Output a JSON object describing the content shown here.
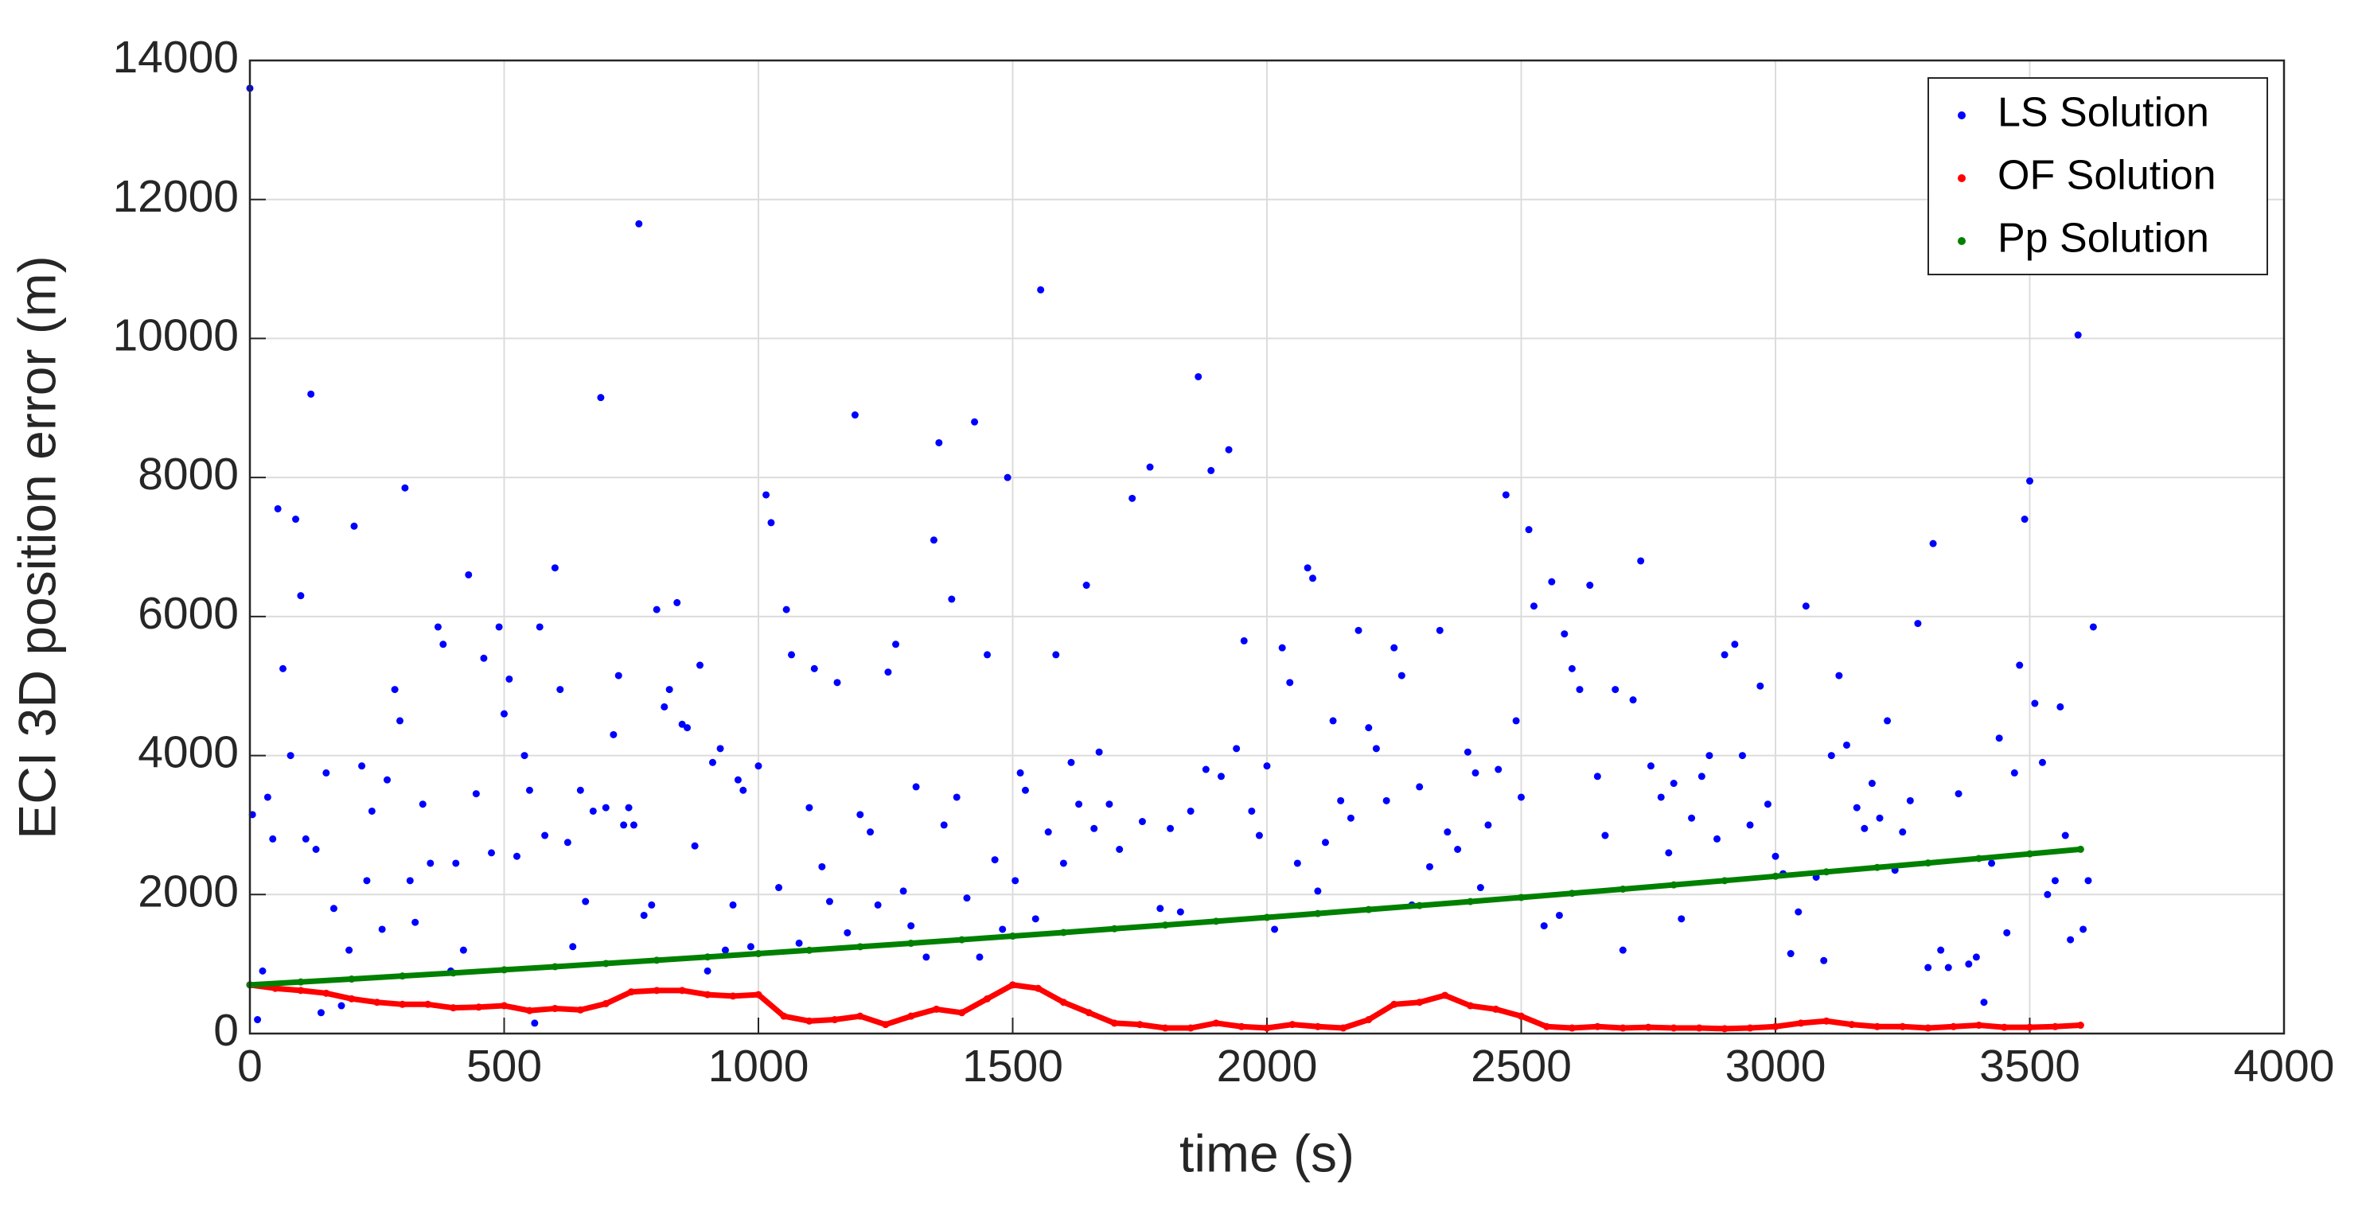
{
  "chart_data": {
    "type": "scatter",
    "xlabel": "time (s)",
    "ylabel": "ECI 3D position error (m)",
    "xlim": [
      0,
      4000
    ],
    "xticks": [
      0,
      500,
      1000,
      1500,
      2000,
      2500,
      3000,
      3500,
      4000
    ],
    "ylim": [
      0,
      14000
    ],
    "yticks": [
      0,
      2000,
      4000,
      6000,
      8000,
      10000,
      12000,
      14000
    ],
    "grid": true,
    "legend": "upper right",
    "series": [
      {
        "name": "LS Solution",
        "color": "#0000ff",
        "line": false,
        "x": [
          0,
          5,
          15,
          25,
          35,
          45,
          55,
          65,
          80,
          90,
          100,
          110,
          120,
          130,
          140,
          150,
          165,
          180,
          195,
          205,
          220,
          230,
          240,
          260,
          270,
          285,
          295,
          305,
          315,
          325,
          340,
          355,
          370,
          380,
          395,
          405,
          420,
          430,
          445,
          460,
          475,
          490,
          500,
          510,
          525,
          540,
          550,
          560,
          570,
          580,
          600,
          610,
          625,
          635,
          650,
          660,
          675,
          690,
          700,
          715,
          725,
          735,
          745,
          755,
          765,
          775,
          790,
          800,
          815,
          825,
          840,
          850,
          860,
          875,
          885,
          900,
          910,
          925,
          935,
          950,
          960,
          970,
          985,
          1000,
          1015,
          1025,
          1040,
          1055,
          1065,
          1080,
          1100,
          1110,
          1125,
          1140,
          1155,
          1175,
          1190,
          1200,
          1220,
          1235,
          1255,
          1270,
          1285,
          1300,
          1310,
          1330,
          1345,
          1355,
          1365,
          1380,
          1390,
          1410,
          1425,
          1435,
          1450,
          1465,
          1480,
          1490,
          1505,
          1515,
          1525,
          1545,
          1555,
          1570,
          1585,
          1600,
          1615,
          1630,
          1645,
          1660,
          1670,
          1690,
          1710,
          1735,
          1755,
          1770,
          1790,
          1810,
          1830,
          1850,
          1865,
          1880,
          1890,
          1910,
          1925,
          1940,
          1955,
          1970,
          1985,
          2000,
          2015,
          2030,
          2045,
          2060,
          2080,
          2090,
          2100,
          2115,
          2130,
          2145,
          2165,
          2180,
          2200,
          2215,
          2235,
          2250,
          2265,
          2285,
          2300,
          2320,
          2340,
          2355,
          2375,
          2395,
          2410,
          2420,
          2435,
          2455,
          2470,
          2490,
          2500,
          2515,
          2525,
          2545,
          2560,
          2575,
          2585,
          2600,
          2615,
          2635,
          2650,
          2665,
          2685,
          2700,
          2720,
          2735,
          2755,
          2775,
          2790,
          2800,
          2815,
          2835,
          2855,
          2870,
          2885,
          2900,
          2920,
          2935,
          2950,
          2970,
          2985,
          3000,
          3015,
          3030,
          3045,
          3060,
          3080,
          3095,
          3110,
          3125,
          3140,
          3160,
          3175,
          3190,
          3205,
          3220,
          3235,
          3250,
          3265,
          3280,
          3300,
          3310,
          3325,
          3340,
          3360,
          3380,
          3395,
          3410,
          3425,
          3440,
          3455,
          3470,
          3480,
          3490,
          3500,
          3510,
          3525,
          3535,
          3550,
          3560,
          3570,
          3580,
          3595,
          3605,
          3615,
          3625
        ],
        "values": [
          13600,
          3150,
          200,
          900,
          3400,
          2800,
          7550,
          5250,
          4000,
          7400,
          6300,
          2800,
          9200,
          2650,
          300,
          3750,
          1800,
          400,
          1200,
          7300,
          3850,
          2200,
          3200,
          1500,
          3650,
          4950,
          4500,
          7850,
          2200,
          1600,
          3300,
          2450,
          5850,
          5600,
          900,
          2450,
          1200,
          6600,
          3450,
          5400,
          2600,
          5850,
          4600,
          5100,
          2550,
          4000,
          3500,
          150,
          5850,
          2850,
          6700,
          4950,
          2750,
          1250,
          3500,
          1900,
          3200,
          9150,
          3250,
          4300,
          5150,
          3000,
          3250,
          3000,
          11650,
          1700,
          1850,
          6100,
          4700,
          4950,
          6200,
          4450,
          4400,
          2700,
          5300,
          900,
          3900,
          4100,
          1200,
          1850,
          3650,
          3500,
          1250,
          3850,
          7750,
          7350,
          2100,
          6100,
          5450,
          1300,
          3250,
          5250,
          2400,
          1900,
          5050,
          1450,
          8900,
          3150,
          2900,
          1850,
          5200,
          5600,
          2050,
          1550,
          3550,
          1100,
          7100,
          8500,
          3000,
          6250,
          3400,
          1950,
          8800,
          1100,
          5450,
          2500,
          1500,
          8000,
          2200,
          3750,
          3500,
          1650,
          10700,
          2900,
          5450,
          2450,
          3900,
          3300,
          6450,
          2950,
          4050,
          3300,
          2650,
          7700,
          3050,
          8150,
          1800,
          2950,
          1750,
          3200,
          9450,
          3800,
          8100,
          3700,
          8400,
          4100,
          5650,
          3200,
          2850,
          3850,
          1500,
          5550,
          5050,
          2450,
          6700,
          6550,
          2050,
          2750,
          4500,
          3350,
          3100,
          5800,
          4400,
          4100,
          3350,
          5550,
          5150,
          1850,
          3550,
          2400,
          5800,
          2900,
          2650,
          4050,
          3750,
          2100,
          3000,
          3800,
          7750,
          4500,
          3400,
          7250,
          6150,
          1550,
          6500,
          1700,
          5750,
          5250,
          4950,
          6450,
          3700,
          2850,
          4950,
          1200,
          4800,
          6800,
          3850,
          3400,
          2600,
          3600,
          1650,
          3100,
          3700,
          4000,
          2800,
          5450,
          5600,
          4000,
          3000,
          5000,
          3300,
          2550,
          2300,
          1150,
          1750,
          6150,
          2250,
          1050,
          4000,
          5150,
          4150,
          3250,
          2950,
          3600,
          3100,
          4500,
          2350,
          2900,
          3350,
          5900,
          950,
          7050,
          1200,
          950,
          3450,
          1000,
          1100,
          450,
          2450,
          4250,
          1450,
          3750,
          5300,
          7400,
          7950,
          4750,
          3900,
          2000,
          2200,
          4700,
          2850,
          1350,
          10050,
          1500,
          2200,
          5850
        ]
      },
      {
        "name": "OF Solution",
        "color": "#ff0000",
        "line": true,
        "x": [
          0,
          50,
          100,
          150,
          200,
          250,
          300,
          350,
          400,
          450,
          500,
          550,
          600,
          650,
          700,
          750,
          800,
          850,
          900,
          950,
          1000,
          1050,
          1100,
          1150,
          1200,
          1250,
          1300,
          1350,
          1400,
          1450,
          1500,
          1550,
          1600,
          1650,
          1700,
          1750,
          1800,
          1850,
          1900,
          1950,
          2000,
          2050,
          2100,
          2150,
          2200,
          2250,
          2300,
          2350,
          2400,
          2450,
          2500,
          2550,
          2600,
          2650,
          2700,
          2750,
          2800,
          2850,
          2900,
          2950,
          3000,
          3050,
          3100,
          3150,
          3200,
          3250,
          3300,
          3350,
          3400,
          3450,
          3500,
          3550,
          3600
        ],
        "values": [
          700,
          650,
          620,
          580,
          500,
          450,
          420,
          420,
          370,
          380,
          400,
          330,
          360,
          340,
          430,
          600,
          620,
          620,
          560,
          540,
          560,
          250,
          180,
          200,
          250,
          130,
          250,
          350,
          300,
          500,
          700,
          650,
          450,
          300,
          150,
          130,
          80,
          80,
          150,
          100,
          80,
          130,
          100,
          80,
          200,
          420,
          450,
          550,
          400,
          350,
          250,
          100,
          80,
          100,
          80,
          90,
          80,
          80,
          70,
          80,
          100,
          150,
          180,
          130,
          100,
          100,
          80,
          100,
          120,
          90,
          90,
          100,
          120
        ]
      },
      {
        "name": "Pp Solution",
        "color": "#008000",
        "line": true,
        "x": [
          0,
          100,
          200,
          300,
          400,
          500,
          600,
          700,
          800,
          900,
          1000,
          1100,
          1200,
          1300,
          1400,
          1500,
          1600,
          1700,
          1800,
          1900,
          2000,
          2100,
          2200,
          2300,
          2400,
          2500,
          2600,
          2700,
          2800,
          2900,
          3000,
          3100,
          3200,
          3300,
          3400,
          3500,
          3600
        ],
        "values": [
          700,
          742,
          784,
          828,
          872,
          917,
          962,
          1008,
          1055,
          1102,
          1150,
          1199,
          1249,
          1299,
          1350,
          1402,
          1454,
          1508,
          1561,
          1616,
          1671,
          1727,
          1784,
          1841,
          1899,
          1958,
          2018,
          2078,
          2139,
          2200,
          2263,
          2326,
          2390,
          2454,
          2519,
          2585,
          2651
        ]
      }
    ]
  }
}
